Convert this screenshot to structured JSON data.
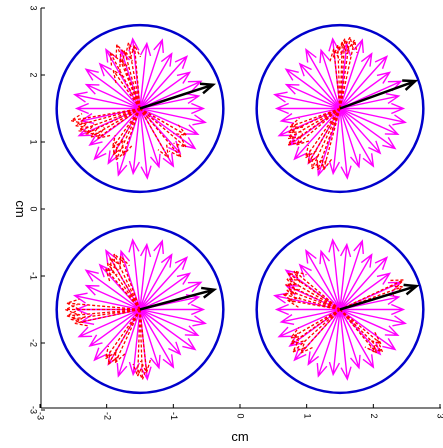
{
  "chart_data": {
    "type": "scatter",
    "title": "",
    "xlabel": "cm",
    "ylabel": "cm",
    "xlim": [
      -3,
      3
    ],
    "ylim": [
      -3,
      3
    ],
    "x_ticks": [
      "-3",
      "-2",
      "-1",
      "0",
      "1",
      "2",
      "3"
    ],
    "y_ticks": [
      "-3",
      "-2",
      "-1",
      "0",
      "1",
      "2",
      "3"
    ],
    "grid": false,
    "colors": {
      "circle": "#0000cc",
      "solid_arrows": "#ff00ff",
      "dashed_arrows": "#ff0000",
      "reference_arrow": "#000000"
    },
    "panels": [
      {
        "center": [
          -1.5,
          1.5
        ],
        "radius": 1.25,
        "dashed_arrows": [
          {
            "angle": 95,
            "length": 0.95
          },
          {
            "angle": 100,
            "length": 1.0
          },
          {
            "angle": 105,
            "length": 0.9
          },
          {
            "angle": 110,
            "length": 1.02
          },
          {
            "angle": 112,
            "length": 0.8
          },
          {
            "angle": 118,
            "length": 0.95
          },
          {
            "angle": 125,
            "length": 0.7
          },
          {
            "angle": 190,
            "length": 1.05
          },
          {
            "angle": 195,
            "length": 1.0
          },
          {
            "angle": 200,
            "length": 0.98
          },
          {
            "angle": 205,
            "length": 0.9
          },
          {
            "angle": 210,
            "length": 0.85
          },
          {
            "angle": 215,
            "length": 0.78
          },
          {
            "angle": 235,
            "length": 0.72
          },
          {
            "angle": 240,
            "length": 0.8
          },
          {
            "angle": 245,
            "length": 0.85
          },
          {
            "angle": 250,
            "length": 0.75
          },
          {
            "angle": 300,
            "length": 0.85
          },
          {
            "angle": 310,
            "length": 0.95
          },
          {
            "angle": 320,
            "length": 0.9
          },
          {
            "angle": 330,
            "length": 0.8
          }
        ],
        "reference_arrow": {
          "angle": 18,
          "length": 1.15
        }
      },
      {
        "center": [
          1.5,
          1.5
        ],
        "radius": 1.25,
        "dashed_arrows": [
          {
            "angle": 78,
            "length": 1.05
          },
          {
            "angle": 82,
            "length": 1.08
          },
          {
            "angle": 86,
            "length": 1.05
          },
          {
            "angle": 88,
            "length": 1.0
          },
          {
            "angle": 92,
            "length": 0.95
          },
          {
            "angle": 96,
            "length": 0.9
          },
          {
            "angle": 200,
            "length": 0.8
          },
          {
            "angle": 205,
            "length": 0.85
          },
          {
            "angle": 210,
            "length": 0.9
          },
          {
            "angle": 215,
            "length": 0.95
          },
          {
            "angle": 220,
            "length": 0.85
          },
          {
            "angle": 235,
            "length": 0.9
          },
          {
            "angle": 240,
            "length": 0.95
          },
          {
            "angle": 245,
            "length": 1.0
          },
          {
            "angle": 250,
            "length": 0.98
          },
          {
            "angle": 255,
            "length": 0.95
          }
        ],
        "reference_arrow": {
          "angle": 20,
          "length": 1.2
        }
      },
      {
        "center": [
          -1.5,
          -1.5
        ],
        "radius": 1.25,
        "dashed_arrows": [
          {
            "angle": 110,
            "length": 0.85
          },
          {
            "angle": 115,
            "length": 0.92
          },
          {
            "angle": 120,
            "length": 0.9
          },
          {
            "angle": 125,
            "length": 0.85
          },
          {
            "angle": 130,
            "length": 0.8
          },
          {
            "angle": 175,
            "length": 1.1
          },
          {
            "angle": 180,
            "length": 1.12
          },
          {
            "angle": 185,
            "length": 1.1
          },
          {
            "angle": 188,
            "length": 1.05
          },
          {
            "angle": 192,
            "length": 1.0
          },
          {
            "angle": 235,
            "length": 0.9
          },
          {
            "angle": 240,
            "length": 0.95
          },
          {
            "angle": 245,
            "length": 0.88
          },
          {
            "angle": 268,
            "length": 1.0
          },
          {
            "angle": 272,
            "length": 1.05
          },
          {
            "angle": 276,
            "length": 0.95
          }
        ],
        "reference_arrow": {
          "angle": 15,
          "length": 1.15
        }
      },
      {
        "center": [
          1.5,
          -1.5
        ],
        "radius": 1.25,
        "dashed_arrows": [
          {
            "angle": 140,
            "length": 0.9
          },
          {
            "angle": 145,
            "length": 0.95
          },
          {
            "angle": 150,
            "length": 0.92
          },
          {
            "angle": 155,
            "length": 0.9
          },
          {
            "angle": 160,
            "length": 0.85
          },
          {
            "angle": 165,
            "length": 0.88
          },
          {
            "angle": 170,
            "length": 0.8
          },
          {
            "angle": 210,
            "length": 0.85
          },
          {
            "angle": 215,
            "length": 0.9
          },
          {
            "angle": 222,
            "length": 0.95
          },
          {
            "angle": 228,
            "length": 0.88
          },
          {
            "angle": 310,
            "length": 0.85
          },
          {
            "angle": 315,
            "length": 0.9
          },
          {
            "angle": 320,
            "length": 0.8
          },
          {
            "angle": 25,
            "length": 1.05
          },
          {
            "angle": 20,
            "length": 1.0
          }
        ],
        "reference_arrow": {
          "angle": 17,
          "length": 1.2
        }
      }
    ],
    "solid_arrows": [
      {
        "angle": 0,
        "length": 0.95
      },
      {
        "angle": 12,
        "length": 0.9
      },
      {
        "angle": 24,
        "length": 1.0
      },
      {
        "angle": 36,
        "length": 0.92
      },
      {
        "angle": 48,
        "length": 1.05
      },
      {
        "angle": 60,
        "length": 0.95
      },
      {
        "angle": 72,
        "length": 1.08
      },
      {
        "angle": 84,
        "length": 0.98
      },
      {
        "angle": 96,
        "length": 1.05
      },
      {
        "angle": 108,
        "length": 0.92
      },
      {
        "angle": 120,
        "length": 1.02
      },
      {
        "angle": 132,
        "length": 0.9
      },
      {
        "angle": 144,
        "length": 1.0
      },
      {
        "angle": 156,
        "length": 0.88
      },
      {
        "angle": 168,
        "length": 1.0
      },
      {
        "angle": 180,
        "length": 0.95
      },
      {
        "angle": 192,
        "length": 0.9
      },
      {
        "angle": 204,
        "length": 1.0
      },
      {
        "angle": 216,
        "length": 0.93
      },
      {
        "angle": 228,
        "length": 1.02
      },
      {
        "angle": 240,
        "length": 0.95
      },
      {
        "angle": 252,
        "length": 1.05
      },
      {
        "angle": 264,
        "length": 0.98
      },
      {
        "angle": 276,
        "length": 1.05
      },
      {
        "angle": 288,
        "length": 0.92
      },
      {
        "angle": 300,
        "length": 1.0
      },
      {
        "angle": 312,
        "length": 0.9
      },
      {
        "angle": 324,
        "length": 1.02
      },
      {
        "angle": 336,
        "length": 0.95
      },
      {
        "angle": 348,
        "length": 1.0
      }
    ]
  }
}
